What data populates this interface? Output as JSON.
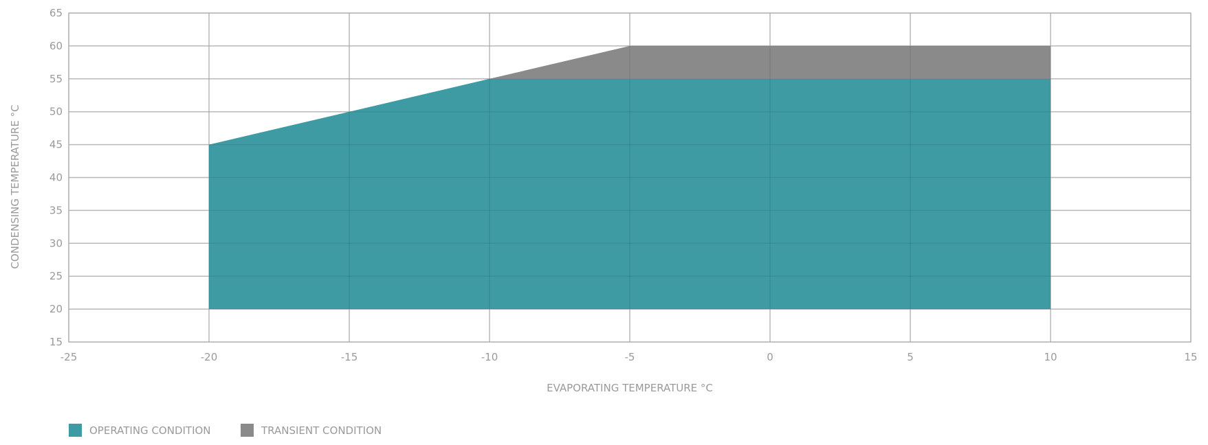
{
  "chart_data": {
    "type": "area",
    "xlabel": "EVAPORATING TEMPERATURE °C",
    "ylabel": "CONDENSING TEMPERATURE °C",
    "xlim": [
      -25,
      15
    ],
    "ylim": [
      15,
      65
    ],
    "x_ticks": [
      -25,
      -20,
      -15,
      -10,
      -5,
      0,
      5,
      10,
      15
    ],
    "y_ticks": [
      15,
      20,
      25,
      30,
      35,
      40,
      45,
      50,
      55,
      60,
      65
    ],
    "grid": true,
    "legend_position": "bottom-left",
    "series": [
      {
        "name": "OPERATING CONDITION",
        "color": "#3f9ba3",
        "polygon": [
          [
            -20,
            20
          ],
          [
            -20,
            45
          ],
          [
            -10,
            55
          ],
          [
            10,
            55
          ],
          [
            10,
            20
          ]
        ]
      },
      {
        "name": "TRANSIENT CONDITION",
        "color": "#8a8a8a",
        "polygon": [
          [
            -10,
            55
          ],
          [
            -5,
            60
          ],
          [
            10,
            60
          ],
          [
            10,
            55
          ]
        ]
      }
    ]
  }
}
